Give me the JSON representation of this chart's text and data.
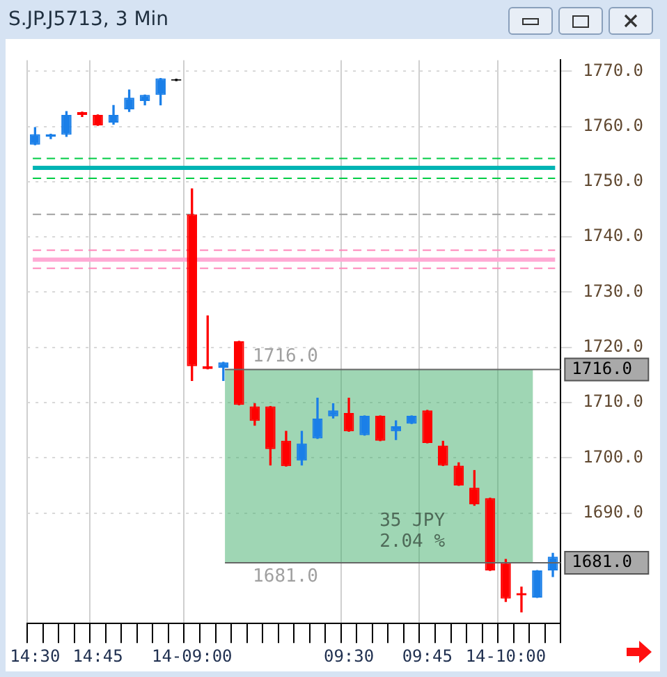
{
  "chart_data": {
    "type": "candlestick",
    "title": "S.JP.J5713, 3 Min",
    "categories": [
      "14:30",
      null,
      null,
      null,
      "14:45",
      null,
      null,
      null,
      null,
      null,
      "14-09:00",
      null,
      null,
      null,
      null,
      null,
      null,
      null,
      null,
      null,
      "09:30",
      null,
      null,
      null,
      null,
      "09:45",
      null,
      null,
      null,
      null,
      "14-10:00",
      null,
      null,
      null
    ],
    "ohlc": [
      [
        1756.7,
        1759.8,
        1756.7,
        1758.6
      ],
      [
        1758.1,
        1758.6,
        1757.8,
        1758.6
      ],
      [
        1758.5,
        1762.7,
        1758.2,
        1762.1
      ],
      [
        1762.6,
        1762.6,
        1761.8,
        1762.1
      ],
      [
        1762.1,
        1762.1,
        1760.2,
        1760.2
      ],
      [
        1760.7,
        1763.8,
        1760.4,
        1762.1
      ],
      [
        1763.1,
        1766.6,
        1762.7,
        1765.2
      ],
      [
        1764.6,
        1765.7,
        1763.9,
        1765.7
      ],
      [
        1765.7,
        1768.7,
        1763.9,
        1768.7
      ],
      [
        1768.3,
        1768.3,
        1768.3,
        1768.3
      ],
      [
        1744.1,
        1748.7,
        1714.0,
        1716.6
      ],
      [
        1716.6,
        1725.7,
        1716.1,
        1716.1
      ],
      [
        1716.3,
        1717.3,
        1714.0,
        1717.3
      ],
      [
        1721.1,
        1721.1,
        1709.6,
        1709.6
      ],
      [
        1709.3,
        1709.8,
        1705.9,
        1706.7
      ],
      [
        1709.3,
        1709.3,
        1698.7,
        1701.6
      ],
      [
        1703.1,
        1704.8,
        1698.5,
        1698.5
      ],
      [
        1699.5,
        1704.8,
        1698.7,
        1702.6
      ],
      [
        1703.5,
        1710.8,
        1703.5,
        1707.1
      ],
      [
        1707.5,
        1709.8,
        1707.2,
        1708.6
      ],
      [
        1708.1,
        1710.8,
        1704.8,
        1704.8
      ],
      [
        1704.1,
        1707.6,
        1704.1,
        1707.6
      ],
      [
        1707.6,
        1707.6,
        1703.1,
        1703.1
      ],
      [
        1704.8,
        1706.7,
        1703.3,
        1705.7
      ],
      [
        1706.2,
        1707.6,
        1706.2,
        1707.6
      ],
      [
        1708.6,
        1708.6,
        1702.7,
        1702.7
      ],
      [
        1702.2,
        1703.0,
        1698.6,
        1698.6
      ],
      [
        1698.6,
        1699.1,
        1695.0,
        1695.0
      ],
      [
        1694.6,
        1697.7,
        1691.4,
        1691.6
      ],
      [
        1692.7,
        1692.7,
        1679.6,
        1679.6
      ],
      [
        1681.1,
        1681.6,
        1674.0,
        1674.5
      ],
      [
        1675.5,
        1676.6,
        1672.1,
        1675.1
      ],
      [
        1674.7,
        1679.6,
        1674.7,
        1679.6
      ],
      [
        1679.6,
        1682.7,
        1678.5,
        1682.1
      ]
    ],
    "colors": [
      "#1a7fe8",
      "#1a7fe8",
      "#1a7fe8",
      "#ff0000",
      "#ff0000",
      "#1a7fe8",
      "#1a7fe8",
      "#1a7fe8",
      "#1a7fe8",
      "#000000",
      "#ff0000",
      "#ff0000",
      "#1a7fe8",
      "#ff0000",
      "#ff0000",
      "#ff0000",
      "#ff0000",
      "#1a7fe8",
      "#1a7fe8",
      "#1a7fe8",
      "#ff0000",
      "#1a7fe8",
      "#ff0000",
      "#1a7fe8",
      "#1a7fe8",
      "#ff0000",
      "#ff0000",
      "#ff0000",
      "#ff0000",
      "#ff0000",
      "#ff0000",
      "#ff0000",
      "#1a7fe8",
      "#1a7fe8"
    ],
    "ylim": [
      1670,
      1772
    ],
    "yticks": [
      {
        "value": 1690,
        "label": "1690.0"
      },
      {
        "value": 1700,
        "label": "1700.0"
      },
      {
        "value": 1710,
        "label": "1710.0"
      },
      {
        "value": 1720,
        "label": "1720.0"
      },
      {
        "value": 1730,
        "label": "1730.0"
      },
      {
        "value": 1740,
        "label": "1740.0"
      },
      {
        "value": 1750,
        "label": "1750.0"
      },
      {
        "value": 1760,
        "label": "1760.0"
      },
      {
        "value": 1770,
        "label": "1770.0"
      }
    ],
    "grid": true,
    "ref_lines": [
      {
        "axis": "y",
        "value": 1754.2,
        "color": "#00cc44",
        "line_style": "dashed"
      },
      {
        "axis": "y",
        "value": 1752.5,
        "color": "#00b4b4",
        "line_style": "solid"
      },
      {
        "axis": "y",
        "value": 1750.6,
        "color": "#00cc44",
        "line_style": "dashed"
      },
      {
        "axis": "y",
        "value": 1744.1,
        "color": "#a0a0a0",
        "line_style": "dashed"
      },
      {
        "axis": "y",
        "value": 1737.6,
        "color": "#ff88bb",
        "line_style": "dashed"
      },
      {
        "axis": "y",
        "value": 1735.9,
        "color": "#ffaad4",
        "line_style": "solid"
      },
      {
        "axis": "y",
        "value": 1734.3,
        "color": "#ff88bb",
        "line_style": "dashed"
      }
    ],
    "bands": [
      {
        "axis": "y",
        "from": 1681,
        "to": 1716,
        "color": "#3fae6a"
      }
    ],
    "annotations": [
      "1716.0",
      "1681.0",
      "35 JPY",
      "2.04 %"
    ]
  }
}
